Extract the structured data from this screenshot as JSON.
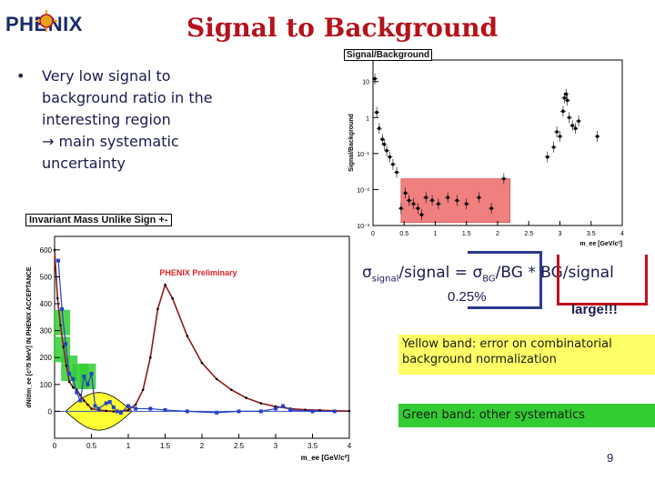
{
  "logo": {
    "text": "PHENIX"
  },
  "title": "Signal to Background",
  "bullet": {
    "marker": "•",
    "lines": [
      "Very low signal to",
      "background ratio in the",
      "interesting region"
    ],
    "arrow_line": "main systematic",
    "last_line": "uncertainty"
  },
  "formula": {
    "sigma": "σ",
    "sub_signal": "signal",
    "part1": "/signal = ",
    "sub_bg": "BG",
    "part2": "/BG * BG/signal"
  },
  "annot_pct": "0.25%",
  "annot_large": "large!!!",
  "yellow_note": "Yellow band: error on combinatorial background normalization",
  "green_note": "Green band: other systematics",
  "page_number": "9",
  "colors": {
    "title": "#b5121b",
    "text": "#1a1a50",
    "yellow": "#ffff66",
    "green": "#33cc33",
    "sb_band": "#f08080",
    "box_blue": "#2a3b8f",
    "box_red": "#c0101a"
  },
  "chart_data": [
    {
      "type": "scatter",
      "title": "Signal/Background",
      "ylabel": "Signal/Background",
      "xlabel": "m_ee [GeV/c²]",
      "xlim": [
        0,
        4
      ],
      "ylim_log10": [
        -3,
        1.6
      ],
      "yscale": "log",
      "x_ticks": [
        "0",
        "0.5",
        "1",
        "1.5",
        "2",
        "2.5",
        "3",
        "3.5",
        "4"
      ],
      "y_ticks": [
        "10⁻³",
        "10⁻²",
        "10⁻¹",
        "1",
        "10"
      ],
      "band": {
        "x": [
          0.45,
          2.2
        ],
        "y": [
          0.0012,
          0.02
        ]
      },
      "x": [
        0.03,
        0.06,
        0.1,
        0.15,
        0.18,
        0.22,
        0.27,
        0.32,
        0.38,
        0.45,
        0.52,
        0.58,
        0.65,
        0.72,
        0.78,
        0.85,
        0.95,
        1.05,
        1.2,
        1.35,
        1.5,
        1.7,
        1.9,
        2.1,
        2.8,
        2.9,
        2.95,
        3.0,
        3.05,
        3.07,
        3.1,
        3.12,
        3.15,
        3.2,
        3.25,
        3.3,
        3.6
      ],
      "y": [
        12,
        1.4,
        0.5,
        0.25,
        0.18,
        0.12,
        0.08,
        0.05,
        0.03,
        0.003,
        0.008,
        0.005,
        0.004,
        0.003,
        0.002,
        0.006,
        0.005,
        0.004,
        0.006,
        0.005,
        0.004,
        0.006,
        0.003,
        0.02,
        0.08,
        0.15,
        0.4,
        0.3,
        1.5,
        3.5,
        4.5,
        3.0,
        1.0,
        0.6,
        0.5,
        0.8,
        0.3
      ]
    },
    {
      "type": "line",
      "title": "Invariant Mass Unlike Sign +-",
      "annotation": "PHENIX Preliminary",
      "ylabel": "dN/dm_ee [c²/5 MeV] IN PHENIX ACCEPTANCE",
      "xlabel": "m_ee [GeV/c²]",
      "xlim": [
        0,
        4
      ],
      "ylim": [
        -100,
        650
      ],
      "x_ticks": [
        "0",
        "0.5",
        "1",
        "1.5",
        "2",
        "2.5",
        "3",
        "3.5",
        "4"
      ],
      "y_ticks": [
        "0",
        "100",
        "200",
        "300",
        "400",
        "500",
        "600"
      ],
      "series": [
        {
          "name": "",
          "x": [
            0.0,
            0.04,
            0.08,
            0.12,
            0.16,
            0.2,
            0.25,
            0.3,
            0.35,
            0.4,
            0.45,
            0.5,
            0.6,
            0.7,
            0.8,
            0.9,
            1.0,
            1.1,
            1.2,
            1.3,
            1.4,
            1.5,
            1.6,
            1.8,
            2.0,
            2.2,
            2.4,
            2.6,
            2.8,
            3.0,
            3.2,
            3.4,
            3.6,
            3.8,
            4.0
          ],
          "y": [
            600,
            420,
            320,
            240,
            170,
            110,
            90,
            80,
            60,
            40,
            25,
            10,
            5,
            2,
            0,
            0,
            5,
            25,
            80,
            200,
            380,
            470,
            420,
            280,
            180,
            120,
            80,
            50,
            30,
            18,
            10,
            6,
            4,
            2,
            1
          ]
        },
        {
          "name": "",
          "x": [
            0.05,
            0.1,
            0.15,
            0.2,
            0.25,
            0.3,
            0.35,
            0.4,
            0.45,
            0.5,
            0.55,
            0.6,
            0.7,
            0.75,
            0.8,
            0.85,
            0.9,
            1.0,
            1.1,
            1.3,
            1.5,
            1.8,
            2.2,
            2.5,
            2.8,
            3.0,
            3.1,
            3.2,
            3.5,
            3.8
          ],
          "y": [
            560,
            380,
            250,
            140,
            120,
            70,
            40,
            130,
            100,
            140,
            20,
            10,
            30,
            35,
            15,
            0,
            -5,
            20,
            10,
            10,
            5,
            0,
            -5,
            0,
            0,
            10,
            20,
            5,
            0,
            0
          ]
        }
      ],
      "bands": [
        {
          "color": "yellow",
          "x": [
            0.15,
            1.05
          ],
          "y_half_width_max": 70
        },
        {
          "color": "green",
          "points": [
            [
              0.1,
              330
            ],
            [
              0.1,
              230
            ],
            [
              0.2,
              160
            ],
            [
              0.35,
              130
            ],
            [
              0.45,
              130
            ]
          ]
        }
      ]
    }
  ]
}
